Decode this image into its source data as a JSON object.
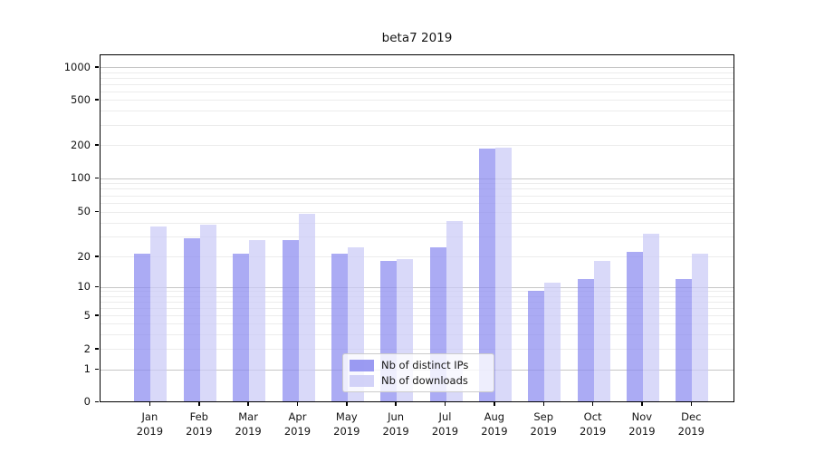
{
  "chart_data": {
    "type": "bar",
    "title": "beta7 2019",
    "categories": [
      "Jan",
      "Feb",
      "Mar",
      "Apr",
      "May",
      "Jun",
      "Jul",
      "Aug",
      "Sep",
      "Oct",
      "Nov",
      "Dec"
    ],
    "year_label": "2019",
    "series": [
      {
        "name": "Nb of distinct IPs",
        "color": "#8a8af0",
        "values": [
          21,
          29,
          21,
          28,
          21,
          18,
          24,
          185,
          9,
          12,
          22,
          12
        ]
      },
      {
        "name": "Nb of downloads",
        "color": "#cbcbf7",
        "values": [
          37,
          38,
          28,
          48,
          24,
          19,
          41,
          190,
          11,
          18,
          32,
          21
        ]
      }
    ],
    "y_ticks": [
      0,
      1,
      2,
      5,
      10,
      20,
      50,
      100,
      200,
      500,
      1000
    ],
    "y_scale": "symlog",
    "ylim": [
      0,
      1400
    ],
    "xlabel": "",
    "ylabel": "",
    "grid": true,
    "legend_position": "lower-center"
  }
}
